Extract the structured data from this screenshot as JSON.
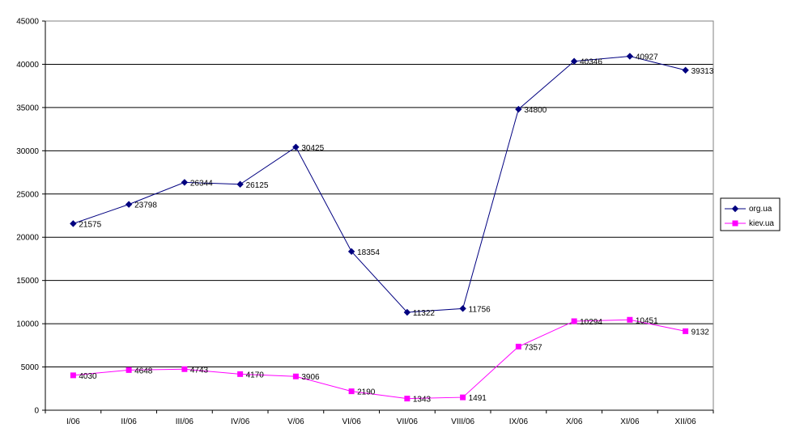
{
  "chart_data": {
    "type": "line",
    "categories": [
      "I/06",
      "II/06",
      "III/06",
      "IV/06",
      "V/06",
      "VI/06",
      "VII/06",
      "VIII/06",
      "IX/06",
      "X/06",
      "XI/06",
      "XII/06"
    ],
    "series": [
      {
        "name": "org.ua",
        "color": "#000080",
        "marker": "diamond",
        "values": [
          21575,
          23798,
          26344,
          26125,
          30425,
          18354,
          11322,
          11756,
          34800,
          40346,
          40927,
          39313
        ]
      },
      {
        "name": "kiev.ua",
        "color": "#FF00FF",
        "marker": "square",
        "values": [
          4030,
          4648,
          4743,
          4170,
          3906,
          2190,
          1343,
          1491,
          7357,
          10294,
          10451,
          9132
        ]
      }
    ],
    "ylim": [
      0,
      45000
    ],
    "yticks": [
      0,
      5000,
      10000,
      15000,
      20000,
      25000,
      30000,
      35000,
      40000,
      45000
    ],
    "grid": true,
    "legend_position": "right",
    "data_labels": true
  }
}
